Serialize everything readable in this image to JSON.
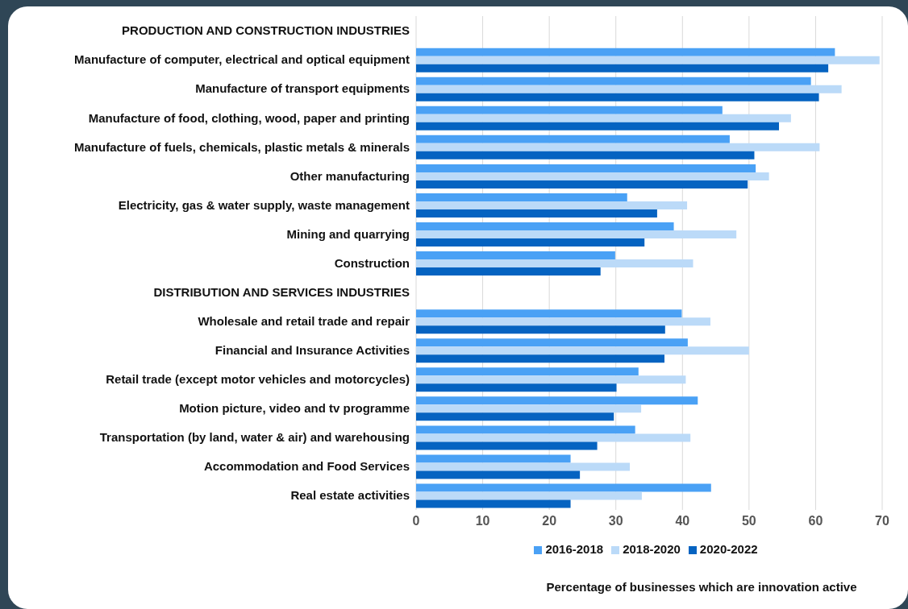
{
  "chart_data": {
    "type": "bar",
    "orientation": "horizontal",
    "xlabel": "Percentage of businesses which are innovation active",
    "categories": [
      "PRODUCTION AND CONSTRUCTION INDUSTRIES",
      "Manufacture of computer, electrical and optical equipment",
      "Manufacture of transport equipments",
      "Manufacture of food, clothing, wood, paper and printing",
      "Manufacture of fuels, chemicals, plastic metals & minerals",
      "Other manufacturing",
      "Electricity, gas & water supply, waste management ",
      "Mining and quarrying",
      "Construction",
      "DISTRIBUTION AND SERVICES INDUSTRIES",
      "Wholesale and retail trade and repair ",
      "Financial and Insurance Activities",
      "Retail trade (except motor vehicles and motorcycles)",
      "Motion picture, video and tv programme ",
      "Transportation (by land, water & air) and warehousing",
      "Accommodation and Food Services",
      "Real estate activities"
    ],
    "series": [
      {
        "name": "2016-2018",
        "color": "#4aa1f5",
        "values": [
          null,
          62.9,
          59.3,
          46.0,
          47.1,
          51.0,
          31.7,
          38.7,
          29.9,
          null,
          39.9,
          40.8,
          33.4,
          42.3,
          32.9,
          23.2,
          44.3
        ]
      },
      {
        "name": "2018-2020",
        "color": "#bbdaf8",
        "values": [
          null,
          69.6,
          63.9,
          56.3,
          60.6,
          53.0,
          40.7,
          48.1,
          41.6,
          null,
          44.2,
          50.0,
          40.5,
          33.8,
          41.2,
          32.1,
          33.9
        ]
      },
      {
        "name": "2020-2022",
        "color": "#0563c1",
        "values": [
          null,
          61.9,
          60.5,
          54.5,
          50.8,
          49.8,
          36.2,
          34.3,
          27.7,
          null,
          37.4,
          37.3,
          30.1,
          29.7,
          27.2,
          24.6,
          23.2
        ]
      }
    ],
    "xlim": [
      0,
      70
    ],
    "xticks": [
      0,
      10,
      20,
      30,
      40,
      50,
      60,
      70
    ],
    "grid": "x",
    "legend": "bottom"
  }
}
